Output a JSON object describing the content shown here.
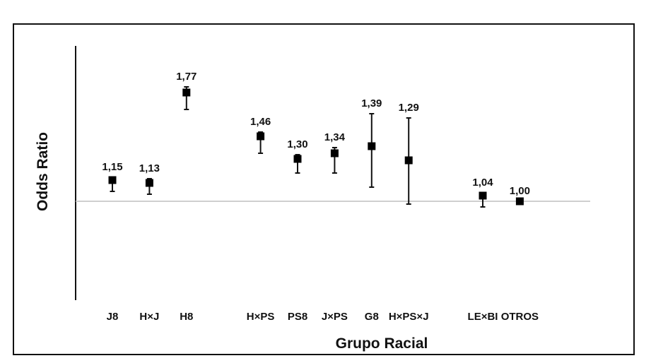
{
  "chart_data": {
    "type": "scatter",
    "title": "",
    "xlabel": "Grupo Racial",
    "ylabel": "Odds Ratio",
    "ylim": [
      0.3,
      2.1
    ],
    "reference_line": 1.0,
    "grid": false,
    "categories": [
      "J8",
      "H×J",
      "H8",
      "H×PS",
      "PS8",
      "J×PS",
      "G8",
      "H×PS×J",
      "LE×BI",
      "OTROS"
    ],
    "values": [
      1.15,
      1.13,
      1.77,
      1.46,
      1.3,
      1.34,
      1.39,
      1.29,
      1.04,
      1.0
    ],
    "value_labels": [
      "1,15",
      "1,13",
      "1,77",
      "1,46",
      "1,30",
      "1,34",
      "1,39",
      "1,29",
      "1,04",
      "1,00"
    ],
    "ci_lower": [
      1.07,
      1.05,
      1.65,
      1.34,
      1.2,
      1.2,
      1.1,
      0.98,
      0.96,
      1.0
    ],
    "ci_upper": [
      1.17,
      1.16,
      1.81,
      1.49,
      1.33,
      1.38,
      1.62,
      1.59,
      1.06,
      1.0
    ],
    "x_positions": [
      1,
      2,
      3,
      5,
      6,
      7,
      8,
      9,
      11,
      12
    ]
  }
}
